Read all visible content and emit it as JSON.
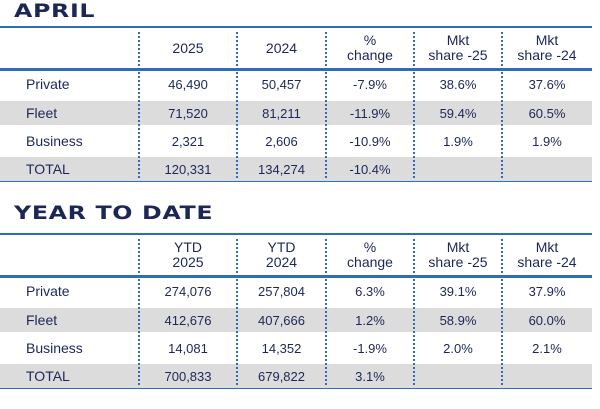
{
  "colors": {
    "text": "#1c2757",
    "accent": "#2f6db5",
    "stripe": "#dcdcdc"
  },
  "april": {
    "title": "APRIL",
    "headers": [
      "",
      "2025",
      "2024",
      "%\nchange",
      "Mkt\nshare -25",
      "Mkt\nshare -24"
    ],
    "rows": [
      [
        "Private",
        "46,490",
        "50,457",
        "-7.9%",
        "38.6%",
        "37.6%"
      ],
      [
        "Fleet",
        "71,520",
        "81,211",
        "-11.9%",
        "59.4%",
        "60.5%"
      ],
      [
        "Business",
        "2,321",
        "2,606",
        "-10.9%",
        "1.9%",
        "1.9%"
      ],
      [
        "TOTAL",
        "120,331",
        "134,274",
        "-10.4%",
        "",
        ""
      ]
    ]
  },
  "ytd": {
    "title": "YEAR TO DATE",
    "headers": [
      "",
      "YTD\n2025",
      "YTD\n2024",
      "%\nchange",
      "Mkt\nshare -25",
      "Mkt\nshare -24"
    ],
    "rows": [
      [
        "Private",
        "274,076",
        "257,804",
        "6.3%",
        "39.1%",
        "37.9%"
      ],
      [
        "Fleet",
        "412,676",
        "407,666",
        "1.2%",
        "58.9%",
        "60.0%"
      ],
      [
        "Business",
        "14,081",
        "14,352",
        "-1.9%",
        "2.0%",
        "2.1%"
      ],
      [
        "TOTAL",
        "700,833",
        "679,822",
        "3.1%",
        "",
        ""
      ]
    ]
  }
}
